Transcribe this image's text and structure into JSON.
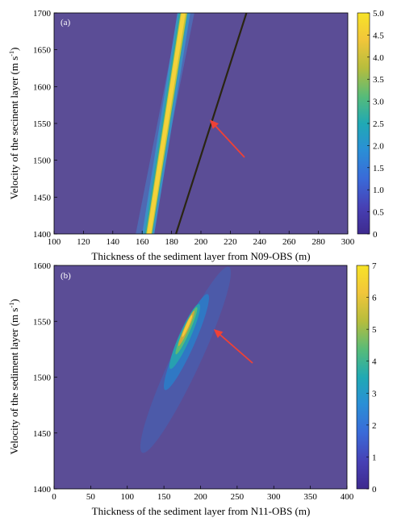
{
  "chart_data": [
    {
      "type": "heatmap",
      "panel_label": "(a)",
      "xlabel": "Thickness of the sediment layer from N09-OBS (m)",
      "ylabel": "Velocity of the secinent layer (m s",
      "ylabel_sup": "-1",
      "ylabel_end": ")",
      "xlim": [
        100,
        300
      ],
      "ylim": [
        1400,
        1700
      ],
      "xticks": [
        100,
        120,
        140,
        160,
        180,
        200,
        220,
        240,
        260,
        280,
        300
      ],
      "yticks": [
        1400,
        1450,
        1500,
        1550,
        1600,
        1650,
        1700
      ],
      "colorbar_ticks": [
        "0",
        "0.5",
        "1.0",
        "1.5",
        "2.0",
        "2.5",
        "3.0",
        "3.5",
        "4.0",
        "4.5",
        "5.0"
      ],
      "colorbar_range": [
        0,
        5
      ],
      "ridge_line": [
        [
          183,
          1400
        ],
        [
          231,
          1700
        ]
      ],
      "minimum_marker": [
        206,
        1555
      ],
      "colors": {
        "background": "#5b4d96",
        "arrow": "#ef4136"
      }
    },
    {
      "type": "heatmap",
      "panel_label": "(b)",
      "xlabel": "Thickness of the sediment layer from N11-OBS (m)",
      "ylabel": "Velocity of the sediment layer (m s",
      "ylabel_sup": "-1",
      "ylabel_end": ")",
      "xlim": [
        0,
        400
      ],
      "ylim": [
        1400,
        1600
      ],
      "xticks": [
        0,
        50,
        100,
        150,
        200,
        250,
        300,
        350,
        400
      ],
      "yticks": [
        1400,
        1450,
        1500,
        1550,
        1600
      ],
      "colorbar_ticks": [
        "0",
        "1",
        "2",
        "3",
        "4",
        "5",
        "6",
        "7"
      ],
      "colorbar_range": [
        0,
        7
      ],
      "minimum_marker": [
        218,
        1543
      ],
      "colors": {
        "background": "#5b4d96",
        "arrow": "#ef4136"
      }
    }
  ]
}
